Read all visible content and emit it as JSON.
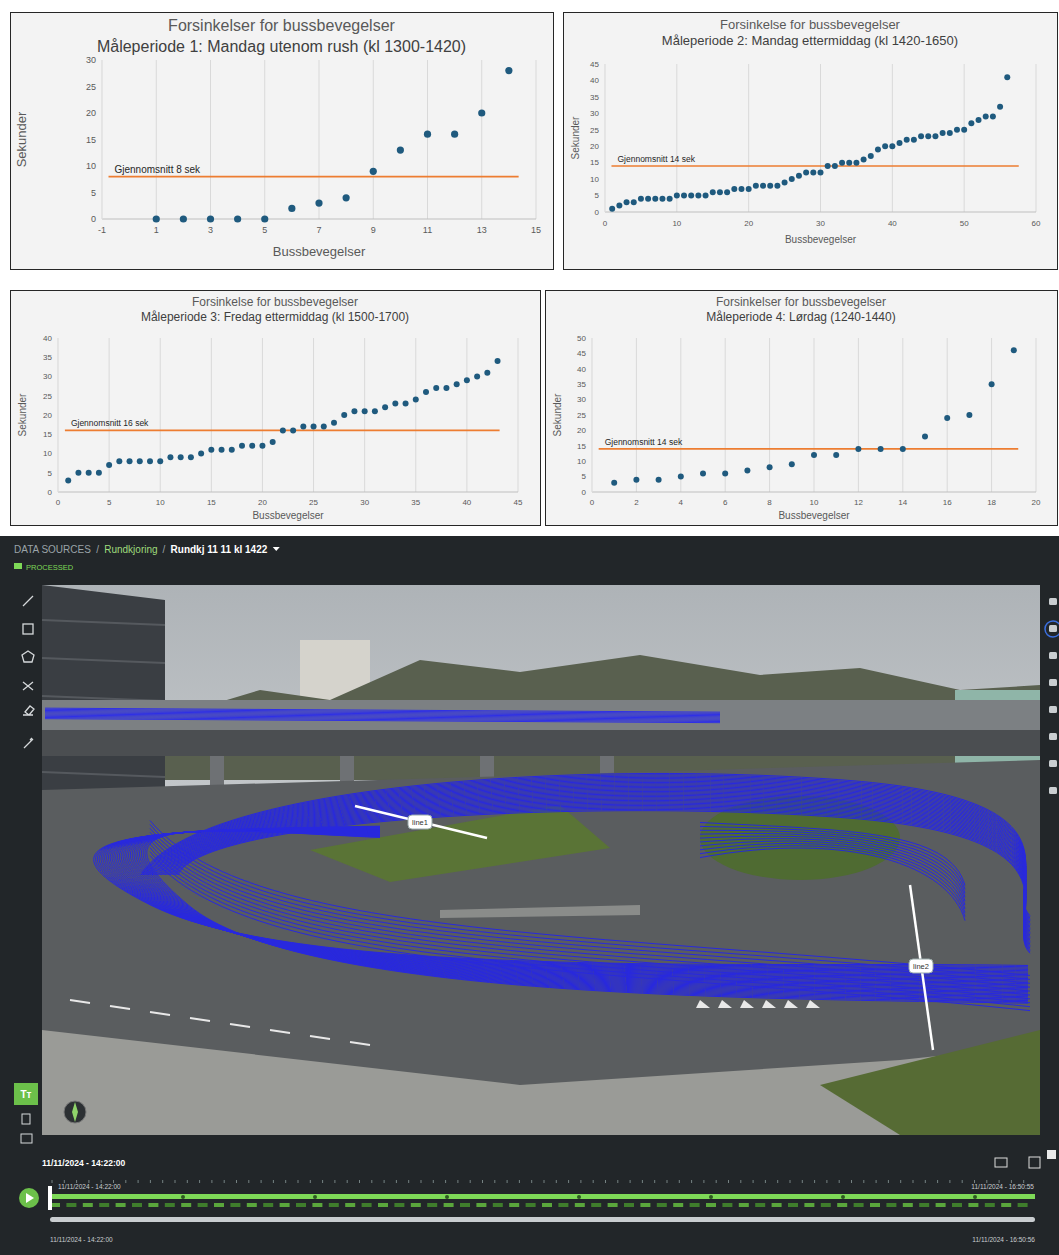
{
  "chart_data": [
    {
      "type": "scatter",
      "title": "Forsinkelser for bussbevegelser",
      "subtitle": "Måleperiode 1: Mandag utenom rush (kl 1300-1420)",
      "x_label": "Bussbevegelser",
      "y_label": "Sekunder",
      "x": [
        1,
        2,
        3,
        4,
        5,
        6,
        7,
        8,
        9,
        10,
        11,
        12,
        13,
        14
      ],
      "values": [
        0,
        0,
        0,
        0,
        0,
        2,
        3,
        4,
        9,
        13,
        16,
        16,
        20,
        28
      ],
      "color": "#1f5a7e",
      "marker": "circle",
      "xlim": [
        -1,
        15
      ],
      "xticks": [
        -1,
        1,
        3,
        5,
        7,
        9,
        11,
        13,
        15
      ],
      "ylim": [
        0,
        30
      ],
      "yticks": [
        0,
        5,
        10,
        15,
        20,
        25,
        30
      ],
      "grid": "x",
      "reference_line": {
        "value": 8,
        "label": "Gjennomsnitt 8 sek"
      }
    },
    {
      "type": "scatter",
      "title": "Forsinkelse for bussbevegelser",
      "subtitle": "Måleperiode 2: Mandag ettermiddag (kl 1420-1650)",
      "x_label": "Bussbevegelser",
      "y_label": "Sekunder",
      "x": [
        1,
        2,
        3,
        4,
        5,
        6,
        7,
        8,
        9,
        10,
        11,
        12,
        13,
        14,
        15,
        16,
        17,
        18,
        19,
        20,
        21,
        22,
        23,
        24,
        25,
        26,
        27,
        28,
        29,
        30,
        31,
        32,
        33,
        34,
        35,
        36,
        37,
        38,
        39,
        40,
        41,
        42,
        43,
        44,
        45,
        46,
        47,
        48,
        49,
        50,
        51,
        52,
        53,
        54,
        55,
        56
      ],
      "values": [
        1,
        2,
        3,
        3,
        4,
        4,
        4,
        4,
        4,
        5,
        5,
        5,
        5,
        5,
        6,
        6,
        6,
        7,
        7,
        7,
        8,
        8,
        8,
        8,
        9,
        10,
        11,
        12,
        12,
        12,
        14,
        14,
        15,
        15,
        15,
        16,
        17,
        19,
        20,
        20,
        21,
        22,
        22,
        23,
        23,
        23,
        24,
        24,
        25,
        25,
        27,
        28,
        29,
        29,
        32,
        41
      ],
      "color": "#1f5a7e",
      "marker": "circle",
      "xlim": [
        0,
        60
      ],
      "xticks": [
        0,
        10,
        20,
        30,
        40,
        50,
        60
      ],
      "ylim": [
        0,
        45
      ],
      "yticks": [
        0,
        5,
        10,
        15,
        20,
        25,
        30,
        35,
        40,
        45
      ],
      "grid": "x",
      "reference_line": {
        "value": 14,
        "label": "Gjennomsnitt 14 sek"
      }
    },
    {
      "type": "scatter",
      "title": "Forsinkelse for bussbevegelser",
      "subtitle": "Måleperiode 3: Fredag ettermiddag (kl 1500-1700)",
      "x_label": "Bussbevegelser",
      "y_label": "Sekunder",
      "x": [
        1,
        2,
        3,
        4,
        5,
        6,
        7,
        8,
        9,
        10,
        11,
        12,
        13,
        14,
        15,
        16,
        17,
        18,
        19,
        20,
        21,
        22,
        23,
        24,
        25,
        26,
        27,
        28,
        29,
        30,
        31,
        32,
        33,
        34,
        35,
        36,
        37,
        38,
        39,
        40,
        41,
        42,
        43
      ],
      "values": [
        3,
        5,
        5,
        5,
        7,
        8,
        8,
        8,
        8,
        8,
        9,
        9,
        9,
        10,
        11,
        11,
        11,
        12,
        12,
        12,
        13,
        16,
        16,
        17,
        17,
        17,
        18,
        20,
        21,
        21,
        21,
        22,
        23,
        23,
        24,
        26,
        27,
        27,
        28,
        29,
        30,
        31,
        34
      ],
      "color": "#1f5a7e",
      "marker": "circle",
      "xlim": [
        0,
        45
      ],
      "xticks": [
        0,
        5,
        10,
        15,
        20,
        25,
        30,
        35,
        40,
        45
      ],
      "ylim": [
        0,
        40
      ],
      "yticks": [
        0,
        5,
        10,
        15,
        20,
        25,
        30,
        35,
        40
      ],
      "grid": "x",
      "reference_line": {
        "value": 16,
        "label": "Gjennomsnitt 16 sek"
      }
    },
    {
      "type": "scatter",
      "title": "Forsinkelser for bussbevegelser",
      "subtitle": "Måleperiode 4: Lørdag (1240-1440)",
      "x_label": "Bussbevegelser",
      "y_label": "Sekunder",
      "x": [
        1,
        2,
        3,
        4,
        5,
        6,
        7,
        8,
        9,
        10,
        11,
        12,
        13,
        14,
        15,
        16,
        17,
        18,
        19
      ],
      "values": [
        3,
        4,
        4,
        5,
        6,
        6,
        7,
        8,
        9,
        12,
        12,
        14,
        14,
        14,
        18,
        24,
        25,
        35,
        46
      ],
      "color": "#1f5a7e",
      "marker": "circle",
      "xlim": [
        0,
        20
      ],
      "xticks": [
        0,
        2,
        4,
        6,
        8,
        10,
        12,
        14,
        16,
        18,
        20
      ],
      "ylim": [
        0,
        50
      ],
      "yticks": [
        0,
        5,
        10,
        15,
        20,
        25,
        30,
        35,
        40,
        45,
        50
      ],
      "grid": "x",
      "reference_line": {
        "value": 14,
        "label": "Gjennomsnitt 14 sek"
      }
    }
  ],
  "screenshot": {
    "breadcrumb": [
      "DATA SOURCES",
      "Rundkjoring",
      "Rundkj 11 11 kl 1422"
    ],
    "separator": "/",
    "state": "PROCESSED",
    "lines": [
      "line1",
      "line2"
    ],
    "text_tool": "Tт",
    "current_time": "11/11/2024 - 14:22:00",
    "window_start": "11/11/2024 - 14:22:00",
    "window_end": "11/11/2024 - 16:50:55",
    "range_start": "11/11/2024 - 14:22:00",
    "range_end": "11/11/2024 - 16:50:56"
  }
}
